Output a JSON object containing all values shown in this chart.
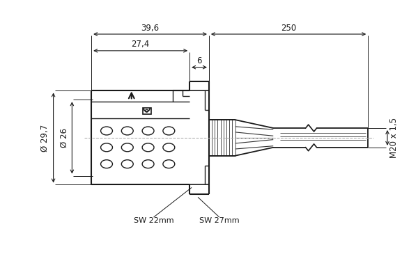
{
  "bg_color": "#ffffff",
  "lc": "#1a1a1a",
  "dc": "#1a1a1a",
  "gray": "#aaaaaa",
  "figsize": [
    5.77,
    3.75
  ],
  "dpi": 100,
  "dim_39_6": "39,6",
  "dim_27_4": "27,4",
  "dim_6": "6",
  "dim_250": "250",
  "dim_29_7": "Ø 29,7",
  "dim_26": "Ø 26",
  "dim_M20": "M20 x 1,5",
  "label_SW22": "SW 22mm",
  "label_SW27": "SW 27mm"
}
